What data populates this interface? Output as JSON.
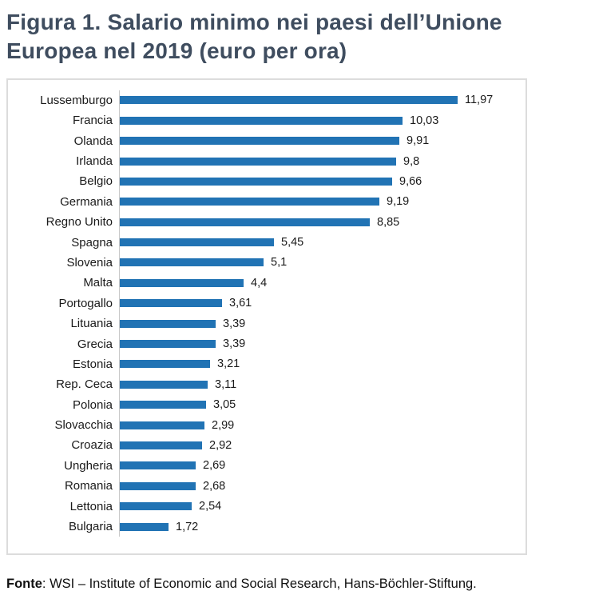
{
  "title": {
    "line1": "Figura 1. Salario minimo nei paesi dell’Unione",
    "line2": "Europea nel 2019 (euro per ora)"
  },
  "chart_data": {
    "type": "bar",
    "orientation": "horizontal",
    "title": "Figura 1. Salario minimo nei paesi dell’Unione Europea nel 2019 (euro per ora)",
    "xlabel": "euro per ora",
    "ylabel": "",
    "categories": [
      "Lussemburgo",
      "Francia",
      "Olanda",
      "Irlanda",
      "Belgio",
      "Germania",
      "Regno Unito",
      "Spagna",
      "Slovenia",
      "Malta",
      "Portogallo",
      "Lituania",
      "Grecia",
      "Estonia",
      "Rep. Ceca",
      "Polonia",
      "Slovacchia",
      "Croazia",
      "Ungheria",
      "Romania",
      "Lettonia",
      "Bulgaria"
    ],
    "values": [
      11.97,
      10.03,
      9.91,
      9.8,
      9.66,
      9.19,
      8.85,
      5.45,
      5.1,
      4.4,
      3.61,
      3.39,
      3.39,
      3.21,
      3.11,
      3.05,
      2.99,
      2.92,
      2.69,
      2.68,
      2.54,
      1.72
    ],
    "value_labels": [
      "11,97",
      "10,03",
      "9,91",
      "9,8",
      "9,66",
      "9,19",
      "8,85",
      "5,45",
      "5,1",
      "4,4",
      "3,61",
      "3,39",
      "3,39",
      "3,21",
      "3,11",
      "3,05",
      "2,99",
      "2,92",
      "2,69",
      "2,68",
      "2,54",
      "1,72"
    ],
    "xlim": [
      0,
      12
    ],
    "grid": false,
    "legend": false,
    "bar_color": "#2173B4"
  },
  "footer": {
    "label": "Fonte",
    "text": ": WSI – Institute of Economic and Social Research, Hans-Böchler-Stiftung."
  },
  "colors": {
    "bar": "#2173B4",
    "title": "#3F4D5F",
    "panel_border": "#DCDCDC",
    "axis_line": "#C9C9C9",
    "text": "#1A1A1A"
  }
}
